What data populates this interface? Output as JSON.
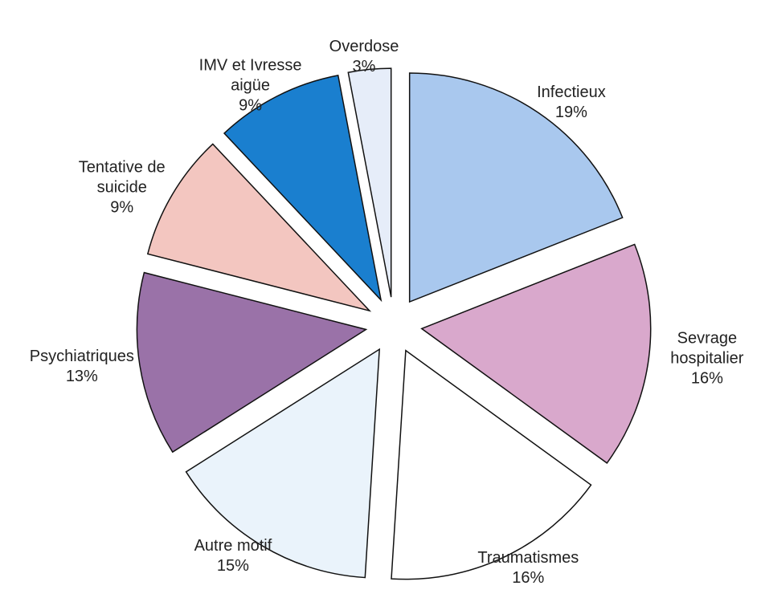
{
  "chart_data": {
    "type": "pie",
    "categories": [
      "Infectieux",
      "Sevrage\nhospitalier",
      "Traumatismes",
      "Autre motif",
      "Psychiatriques",
      "Tentative de\nsuicide",
      "IMV et Ivresse\naigüe",
      "Overdose"
    ],
    "values": [
      19,
      16,
      16,
      15,
      13,
      9,
      9,
      3
    ],
    "value_labels": [
      "19%",
      "16%",
      "16%",
      "15%",
      "13%",
      "9%",
      "9%",
      "3%"
    ],
    "colors": [
      "#a9c8ee",
      "#d9a8cc",
      "#ffffff",
      "#eaf3fb",
      "#9a72a8",
      "#f3c6c0",
      "#1a7fcf",
      "#e6edf9"
    ]
  }
}
